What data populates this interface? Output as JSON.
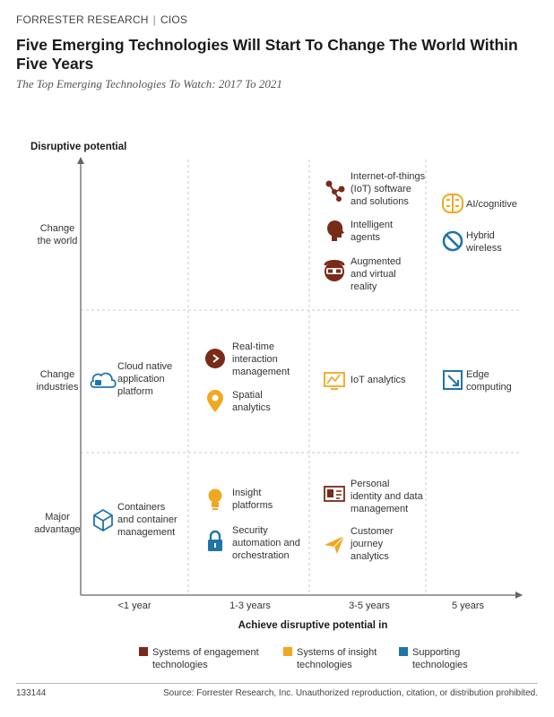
{
  "header": {
    "brand": "FORRESTER RESEARCH",
    "section": "CIOS",
    "title": "Five Emerging Technologies Will Start To Change The World Within Five Years",
    "subtitle": "The Top Emerging Technologies To Watch: 2017 To 2021"
  },
  "colors": {
    "engagement": "#7a2a18",
    "insight": "#f0a820",
    "supporting": "#1f75a8",
    "axis": "#666666",
    "grid": "#c8c8c8"
  },
  "chart_data": {
    "type": "table",
    "ylabel": "Disruptive potential",
    "xlabel": "Achieve disruptive potential in",
    "x_categories": [
      "<1 year",
      "1-3 years",
      "3-5 years",
      "5 years"
    ],
    "y_categories": [
      [
        "Major",
        "advantage"
      ],
      [
        "Change",
        "industries"
      ],
      [
        "Change",
        "the world"
      ]
    ],
    "legend": [
      {
        "key": "engagement",
        "lines": [
          "Systems of engagement",
          "technologies"
        ],
        "color": "#7a2a18"
      },
      {
        "key": "insight",
        "lines": [
          "Systems of insight",
          "technologies"
        ],
        "color": "#f0a820"
      },
      {
        "key": "supporting",
        "lines": [
          "Supporting",
          "technologies"
        ],
        "color": "#1f75a8"
      }
    ],
    "technologies": [
      {
        "id": "iot-software",
        "lines": [
          "Internet-of-things",
          "(IoT) software",
          "and solutions"
        ],
        "x": "3-5 years",
        "y": "Change the world",
        "category": "engagement",
        "icon": "network-icon"
      },
      {
        "id": "intelligent-agents",
        "lines": [
          "Intelligent",
          "agents"
        ],
        "x": "3-5 years",
        "y": "Change the world",
        "category": "engagement",
        "icon": "head-icon"
      },
      {
        "id": "ar-vr",
        "lines": [
          "Augmented",
          "and virtual",
          "reality"
        ],
        "x": "3-5 years",
        "y": "Change the world",
        "category": "engagement",
        "icon": "vr-headset-icon"
      },
      {
        "id": "ai-cognitive",
        "lines": [
          "AI/cognitive"
        ],
        "x": "5 years",
        "y": "Change the world",
        "category": "insight",
        "icon": "brain-icon"
      },
      {
        "id": "hybrid-wireless",
        "lines": [
          "Hybrid",
          "wireless"
        ],
        "x": "5 years",
        "y": "Change the world",
        "category": "supporting",
        "icon": "wireless-icon"
      },
      {
        "id": "cloud-native",
        "lines": [
          "Cloud native",
          "application",
          "platform"
        ],
        "x": "<1 year",
        "y": "Change industries",
        "category": "supporting",
        "icon": "cloud-icon"
      },
      {
        "id": "real-time-interaction",
        "lines": [
          "Real-time",
          "interaction",
          "management"
        ],
        "x": "1-3 years",
        "y": "Change industries",
        "category": "engagement",
        "icon": "chevron-circle-icon"
      },
      {
        "id": "spatial-analytics",
        "lines": [
          "Spatial",
          "analytics"
        ],
        "x": "1-3 years",
        "y": "Change industries",
        "category": "insight",
        "icon": "map-pin-icon"
      },
      {
        "id": "iot-analytics",
        "lines": [
          "IoT analytics"
        ],
        "x": "3-5 years",
        "y": "Change industries",
        "category": "insight",
        "icon": "chart-monitor-icon"
      },
      {
        "id": "edge-computing",
        "lines": [
          "Edge",
          "computing"
        ],
        "x": "5 years",
        "y": "Change industries",
        "category": "supporting",
        "icon": "edge-box-icon"
      },
      {
        "id": "containers",
        "lines": [
          "Containers",
          "and container",
          "management"
        ],
        "x": "<1 year",
        "y": "Major advantage",
        "category": "supporting",
        "icon": "cube-icon"
      },
      {
        "id": "insight-platforms",
        "lines": [
          "Insight",
          "platforms"
        ],
        "x": "1-3 years",
        "y": "Major advantage",
        "category": "insight",
        "icon": "lightbulb-icon"
      },
      {
        "id": "security-automation",
        "lines": [
          "Security",
          "automation and",
          "orchestration"
        ],
        "x": "1-3 years",
        "y": "Major advantage",
        "category": "supporting",
        "icon": "lock-icon"
      },
      {
        "id": "personal-identity",
        "lines": [
          "Personal",
          "identity and data",
          "management"
        ],
        "x": "3-5 years",
        "y": "Major advantage",
        "category": "engagement",
        "icon": "id-card-icon"
      },
      {
        "id": "customer-journey",
        "lines": [
          "Customer",
          "journey",
          "analytics"
        ],
        "x": "3-5 years",
        "y": "Major advantage",
        "category": "insight",
        "icon": "paper-plane-icon"
      }
    ]
  },
  "footer": {
    "id": "133144",
    "source": "Source: Forrester Research, Inc. Unauthorized reproduction, citation, or distribution prohibited."
  }
}
